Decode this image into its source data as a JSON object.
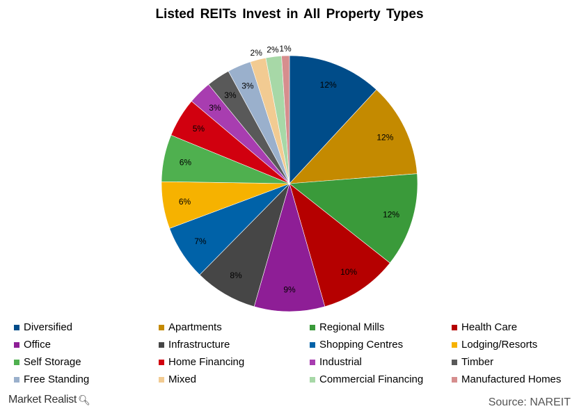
{
  "chart_data": {
    "type": "pie",
    "title": "Listed REITs Invest in All Property  Types",
    "slices": [
      {
        "label": "Diversified",
        "value": 12,
        "value_label": "12%",
        "color": "#004c89"
      },
      {
        "label": "Apartments",
        "value": 12,
        "value_label": "12%",
        "color": "#c48a00"
      },
      {
        "label": "Regional Mills",
        "value": 12,
        "value_label": "12%",
        "color": "#3a9a3a"
      },
      {
        "label": "Health Care",
        "value": 10,
        "value_label": "10%",
        "color": "#b50000"
      },
      {
        "label": "Office",
        "value": 9,
        "value_label": "9%",
        "color": "#8e1e96"
      },
      {
        "label": "Infrastructure",
        "value": 8,
        "value_label": "8%",
        "color": "#464646"
      },
      {
        "label": "Shopping Centres",
        "value": 7,
        "value_label": "7%",
        "color": "#0062a8"
      },
      {
        "label": "Lodging/Resorts",
        "value": 6,
        "value_label": "6%",
        "color": "#f6b200"
      },
      {
        "label": "Self Storage",
        "value": 6,
        "value_label": "6%",
        "color": "#4fb04f"
      },
      {
        "label": "Home Financing",
        "value": 5,
        "value_label": "5%",
        "color": "#d1000f"
      },
      {
        "label": "Industrial",
        "value": 3,
        "value_label": "3%",
        "color": "#a83db0"
      },
      {
        "label": "Timber",
        "value": 3,
        "value_label": "3%",
        "color": "#595959"
      },
      {
        "label": "Free Standing",
        "value": 3,
        "value_label": "3%",
        "color": "#9ab0cc"
      },
      {
        "label": "Mixed",
        "value": 2,
        "value_label": "2%",
        "color": "#f2cb92"
      },
      {
        "label": "Commercial Financing",
        "value": 2,
        "value_label": "2%",
        "color": "#a7d8a7"
      },
      {
        "label": "Manufactured Homes",
        "value": 1,
        "value_label": "1%",
        "color": "#d68e8e"
      }
    ],
    "legend_position": "bottom"
  },
  "footer": {
    "brand": "Market Realist",
    "brand_icon": "magnifier-icon",
    "source": "Source: NAREIT"
  }
}
